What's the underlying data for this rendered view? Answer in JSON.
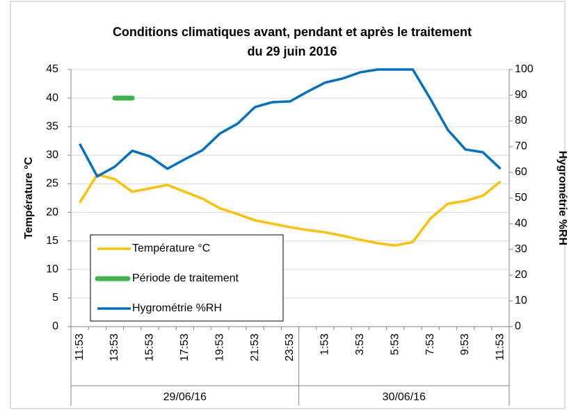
{
  "chart_data": {
    "type": "line",
    "title": [
      "Conditions climatiques avant, pendant et après le traitement",
      "du 29 juin 2016"
    ],
    "ylabel": "Température °C",
    "y2label": "Hygrométrie %RH",
    "categories": [
      "11:53",
      null,
      "13:53",
      null,
      "15:53",
      null,
      "17:53",
      null,
      "19:53",
      null,
      "21:53",
      null,
      "23:53",
      null,
      "1:53",
      null,
      "3:53",
      null,
      "5:53",
      null,
      "7:53",
      null,
      "9:53",
      null,
      "11:53"
    ],
    "date_groups": [
      {
        "label": "29/06/16",
        "count": 13
      },
      {
        "label": "30/06/16",
        "count": 12
      }
    ],
    "series": [
      {
        "name": "Température °C",
        "color": "#FFC000",
        "axis": "y",
        "values": [
          21.7,
          26.6,
          25.8,
          23.6,
          24.2,
          24.8,
          23.6,
          22.4,
          20.7,
          19.7,
          18.6,
          18.0,
          17.4,
          16.9,
          16.5,
          15.9,
          15.2,
          14.6,
          14.2,
          14.8,
          18.9,
          21.5,
          22.0,
          22.9,
          25.4
        ]
      },
      {
        "name": "Période de traitement",
        "color": "#3CB44B",
        "axis": "y",
        "values": [
          null,
          null,
          40,
          40,
          null,
          null,
          null,
          null,
          null,
          null,
          null,
          null,
          null,
          null,
          null,
          null,
          null,
          null,
          null,
          null,
          null,
          null,
          null,
          null,
          null
        ]
      },
      {
        "name": "Hygrométrie %RH",
        "color": "#0070C0",
        "axis": "y2",
        "values": [
          71.1,
          58.4,
          62.2,
          68.4,
          66.2,
          61.4,
          65.1,
          68.6,
          75.1,
          78.9,
          85.4,
          87.3,
          87.6,
          91.4,
          94.9,
          96.5,
          98.9,
          100,
          100,
          100,
          88.6,
          76.5,
          68.9,
          67.8,
          61.4
        ]
      }
    ],
    "ylim": [
      0,
      45
    ],
    "yticks": [
      0,
      5,
      10,
      15,
      20,
      25,
      30,
      35,
      40,
      45
    ],
    "y2lim": [
      0,
      100
    ],
    "y2ticks": [
      0,
      10,
      20,
      30,
      40,
      50,
      60,
      70,
      80,
      90,
      100
    ],
    "grid": true
  }
}
